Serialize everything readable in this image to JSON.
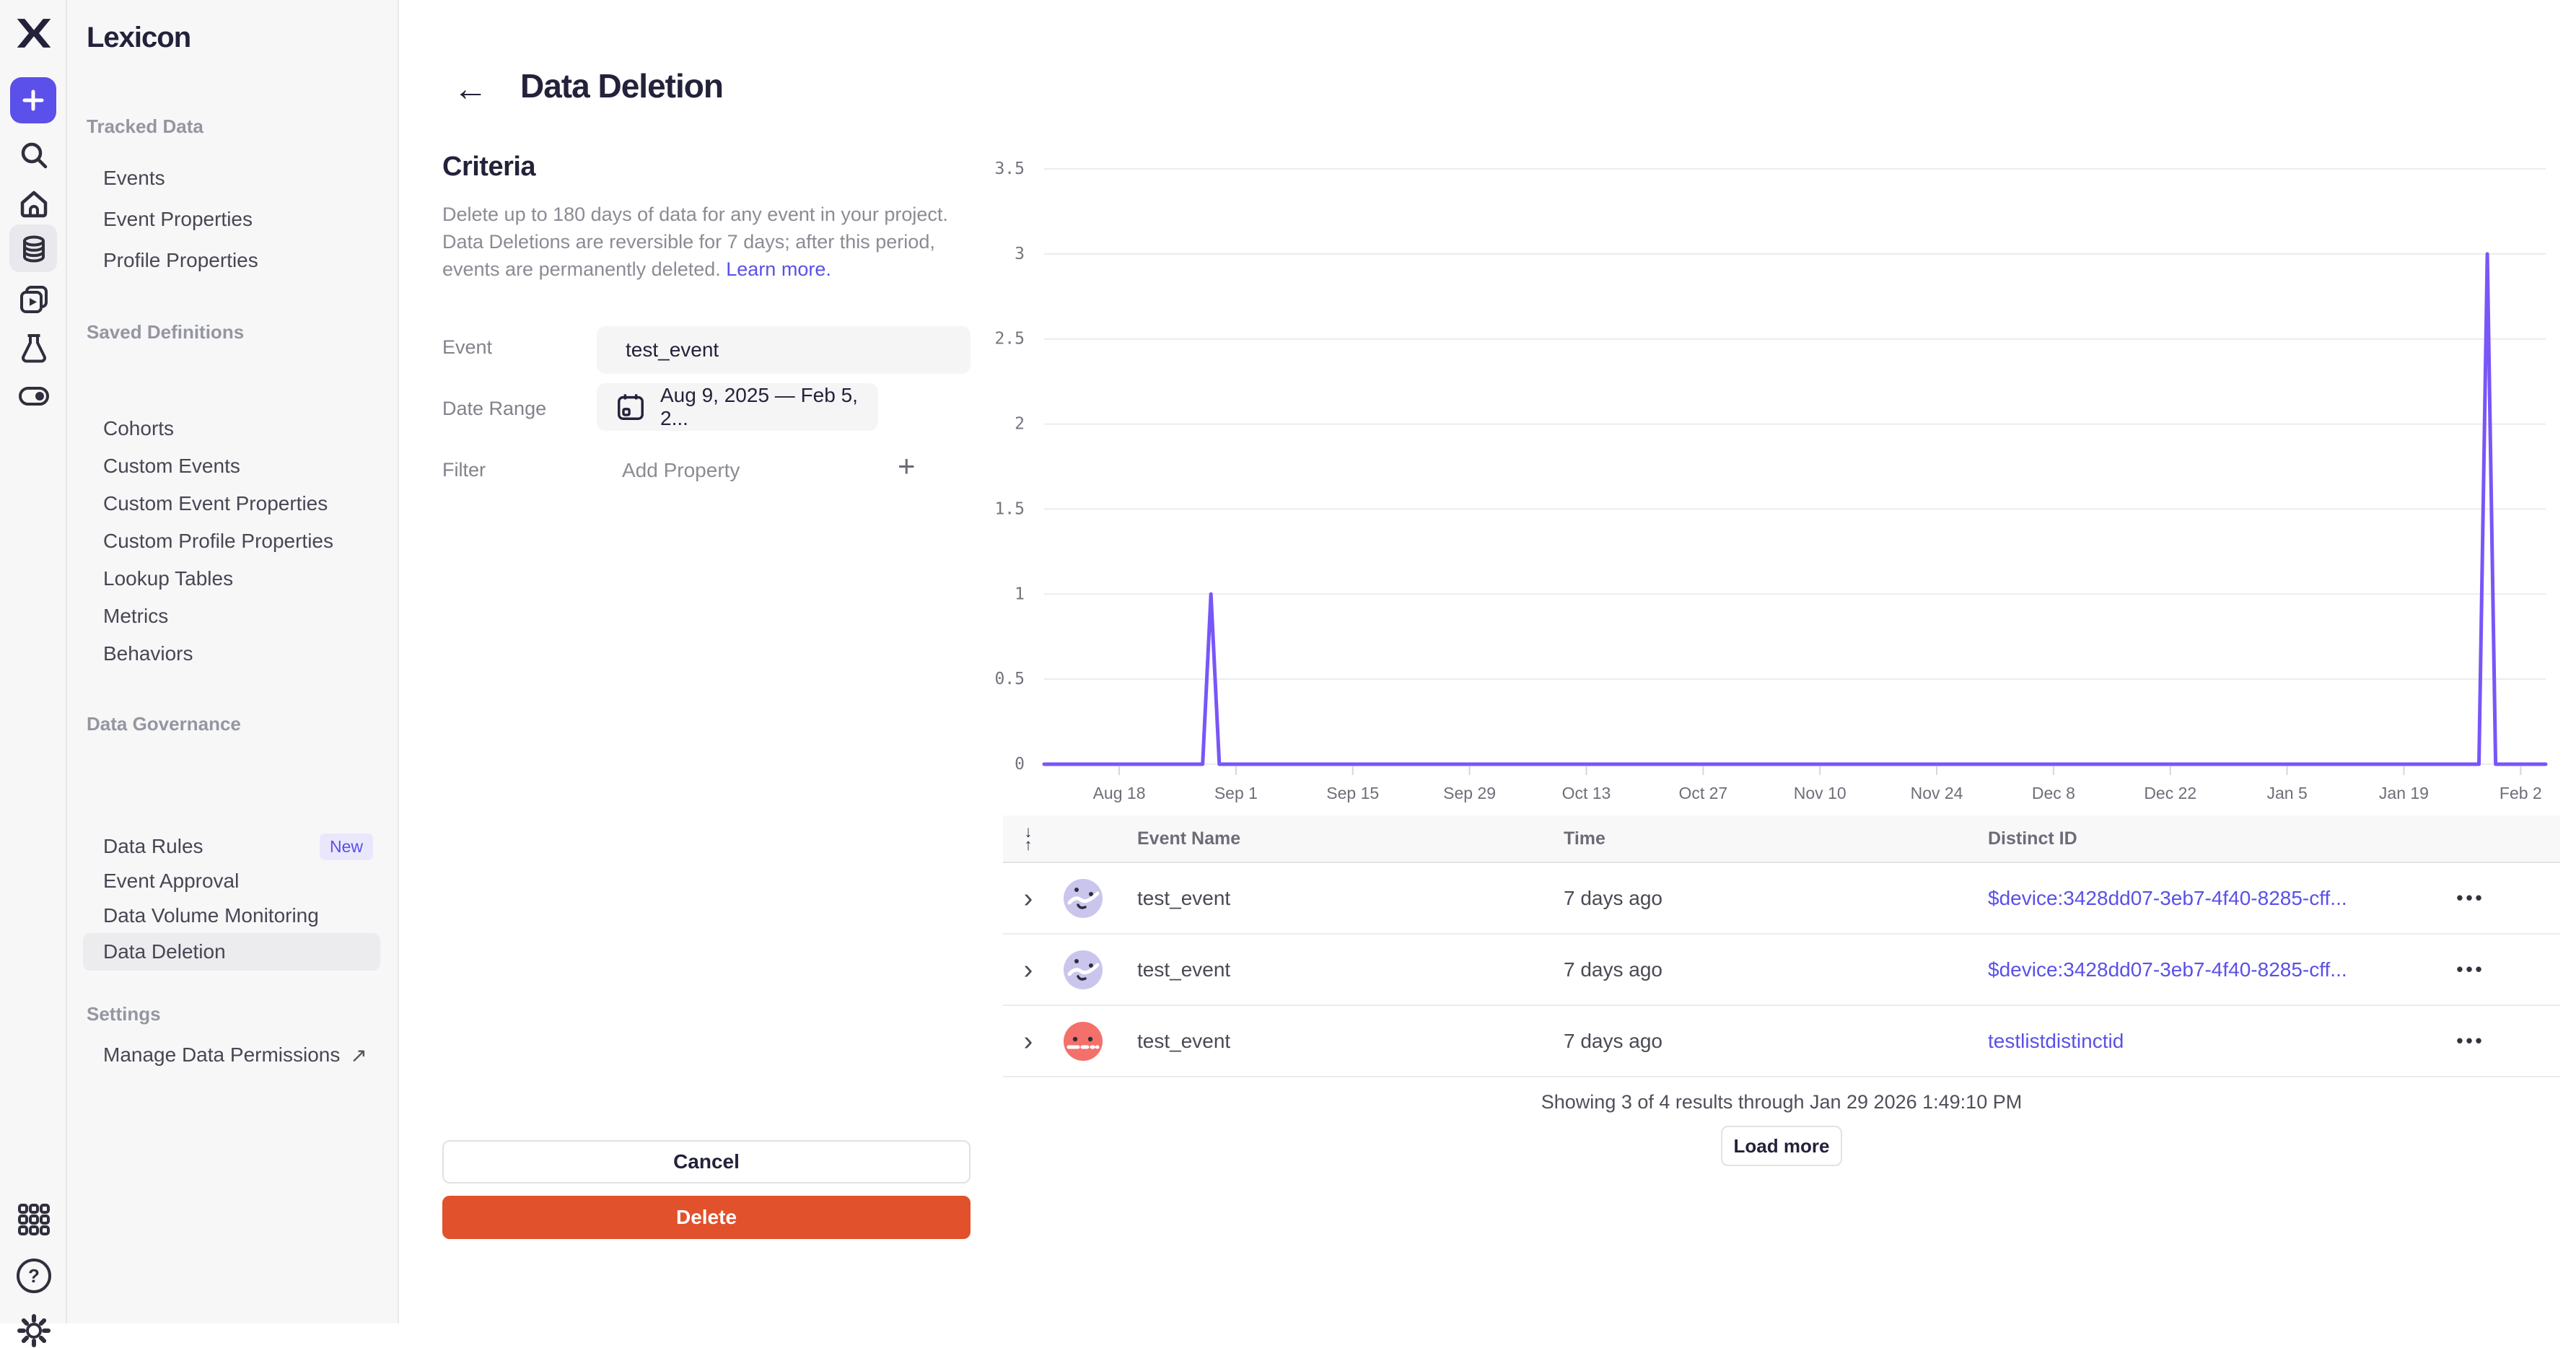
{
  "app": {
    "accent": "#5a50e8",
    "danger": "#e0512c",
    "chart_line": "#7856f8"
  },
  "icons": {
    "rail": [
      "mixpanel-logo",
      "plus",
      "search",
      "home",
      "database",
      "boards",
      "flask",
      "toggle",
      "apps-grid",
      "help",
      "settings-gear"
    ],
    "misc": [
      "back-arrow",
      "calendar",
      "external-link",
      "chevron-right",
      "sort",
      "kebab-menu",
      "avatar-face"
    ]
  },
  "sidebar": {
    "title": "Lexicon",
    "sections": [
      {
        "header": "Tracked Data",
        "items": [
          {
            "label": "Events"
          },
          {
            "label": "Event Properties"
          },
          {
            "label": "Profile Properties"
          }
        ]
      },
      {
        "header": "Saved Definitions",
        "items": [
          {
            "label": "Cohorts"
          },
          {
            "label": "Custom Events"
          },
          {
            "label": "Custom Event Properties"
          },
          {
            "label": "Custom Profile Properties"
          },
          {
            "label": "Lookup Tables"
          },
          {
            "label": "Metrics"
          },
          {
            "label": "Behaviors"
          }
        ]
      },
      {
        "header": "Data Governance",
        "items": [
          {
            "label": "Data Rules",
            "badge": "New"
          },
          {
            "label": "Event Approval"
          },
          {
            "label": "Data Volume Monitoring"
          },
          {
            "label": "Data Deletion",
            "selected": true
          }
        ]
      },
      {
        "header": "Settings",
        "items": [
          {
            "label": "Manage Data Permissions",
            "external": true
          }
        ]
      }
    ]
  },
  "header": {
    "title": "Data Deletion"
  },
  "criteria": {
    "heading": "Criteria",
    "description_lines": [
      "Delete up to 180 days of data for any event in your project.",
      "Data Deletions are reversible for 7 days; after this period,",
      "events are permanently deleted."
    ],
    "learn_more": "Learn more.",
    "fields": {
      "event": {
        "label": "Event",
        "value": "test_event"
      },
      "date_range": {
        "label": "Date Range",
        "value": "Aug 9, 2025 — Feb 5, 2..."
      },
      "filter": {
        "label": "Filter",
        "placeholder": "Add Property"
      }
    },
    "cancel_label": "Cancel",
    "delete_label": "Delete"
  },
  "chart_data": {
    "type": "line",
    "title": "",
    "xlabel": "",
    "ylabel": "",
    "ylim": [
      0,
      3.5
    ],
    "y_ticks": [
      0,
      0.5,
      1,
      1.5,
      2,
      2.5,
      3,
      3.5
    ],
    "x_range": {
      "start": "Aug 9, 2025",
      "end": "Feb 5, 2026",
      "days": 180
    },
    "x_ticks": [
      {
        "label": "Aug 18",
        "day": 9
      },
      {
        "label": "Sep 1",
        "day": 23
      },
      {
        "label": "Sep 15",
        "day": 37
      },
      {
        "label": "Sep 29",
        "day": 51
      },
      {
        "label": "Oct 13",
        "day": 65
      },
      {
        "label": "Oct 27",
        "day": 79
      },
      {
        "label": "Nov 10",
        "day": 93
      },
      {
        "label": "Nov 24",
        "day": 107
      },
      {
        "label": "Dec 8",
        "day": 121
      },
      {
        "label": "Dec 22",
        "day": 135
      },
      {
        "label": "Jan 5",
        "day": 149
      },
      {
        "label": "Jan 19",
        "day": 163
      },
      {
        "label": "Feb 2",
        "day": 177
      }
    ],
    "grid": true,
    "legend": false,
    "series": [
      {
        "name": "test_event",
        "color": "#7856f8",
        "baseline": 0,
        "points": [
          {
            "day": 20,
            "date": "Aug 29, 2025",
            "value": 1
          },
          {
            "day": 173,
            "date": "Jan 29, 2026",
            "value": 3
          }
        ]
      }
    ]
  },
  "table": {
    "columns": [
      "Event Name",
      "Time",
      "Distinct ID"
    ],
    "rows": [
      {
        "event": "test_event",
        "time": "7 days ago",
        "distinct_id": "$device:3428dd07-3eb7-4f40-8285-cff...",
        "avatar": "lavender"
      },
      {
        "event": "test_event",
        "time": "7 days ago",
        "distinct_id": "$device:3428dd07-3eb7-4f40-8285-cff...",
        "avatar": "lavender"
      },
      {
        "event": "test_event",
        "time": "7 days ago",
        "distinct_id": "testlistdistinctid",
        "avatar": "coral"
      }
    ],
    "summary": "Showing 3 of 4 results through Jan 29 2026 1:49:10 PM",
    "load_more_label": "Load more"
  }
}
